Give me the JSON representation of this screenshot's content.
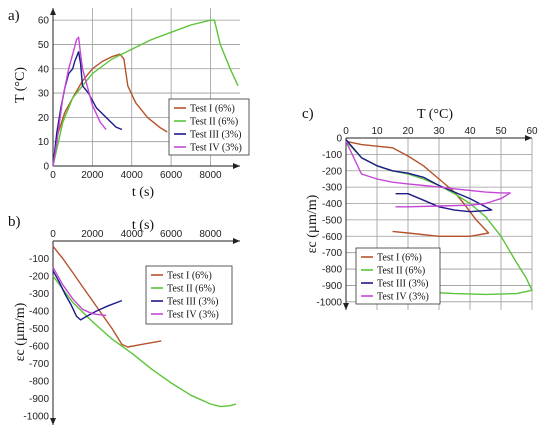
{
  "figure": {
    "panel_a_label": "a)",
    "panel_b_label": "b)",
    "panel_c_label": "c)"
  },
  "colors": {
    "Test I (6%)": "#b5532b",
    "Test II (6%)": "#5cc437",
    "Test III (3%)": "#1d1a8a",
    "Test IV (3%)": "#c547d6"
  },
  "chart_data": [
    {
      "id": "a",
      "type": "line",
      "xlabel": "t (s)",
      "ylabel": "T (°C)",
      "xlim": [
        0,
        9500
      ],
      "ylim": [
        0,
        65
      ],
      "xticks": [
        0,
        2000,
        4000,
        6000,
        8000
      ],
      "yticks": [
        0,
        10,
        20,
        30,
        40,
        50,
        60
      ],
      "grid": true,
      "legend": "center-right",
      "series": [
        {
          "name": "Test I (6%)",
          "points": [
            [
              0,
              0
            ],
            [
              200,
              12
            ],
            [
              600,
              22
            ],
            [
              1000,
              28
            ],
            [
              1500,
              35
            ],
            [
              2000,
              40
            ],
            [
              2500,
              43
            ],
            [
              3000,
              45
            ],
            [
              3400,
              46
            ],
            [
              3600,
              44
            ],
            [
              3800,
              33
            ],
            [
              4200,
              26
            ],
            [
              4800,
              20
            ],
            [
              5400,
              16
            ],
            [
              5800,
              14
            ]
          ]
        },
        {
          "name": "Test II (6%)",
          "points": [
            [
              0,
              0
            ],
            [
              500,
              18
            ],
            [
              1000,
              28
            ],
            [
              2000,
              38
            ],
            [
              3000,
              44
            ],
            [
              4000,
              48
            ],
            [
              5000,
              52
            ],
            [
              6000,
              55
            ],
            [
              7000,
              58
            ],
            [
              8000,
              60
            ],
            [
              8200,
              60
            ],
            [
              8500,
              50
            ],
            [
              9000,
              40
            ],
            [
              9400,
              33
            ]
          ]
        },
        {
          "name": "Test III (3%)",
          "points": [
            [
              0,
              0
            ],
            [
              200,
              14
            ],
            [
              400,
              24
            ],
            [
              600,
              32
            ],
            [
              800,
              38
            ],
            [
              1000,
              40
            ],
            [
              1100,
              43
            ],
            [
              1300,
              47
            ],
            [
              1400,
              42
            ],
            [
              1500,
              33
            ],
            [
              1800,
              30
            ],
            [
              2200,
              24
            ],
            [
              2700,
              20
            ],
            [
              3200,
              16
            ],
            [
              3500,
              15
            ]
          ]
        },
        {
          "name": "Test IV (3%)",
          "points": [
            [
              0,
              0
            ],
            [
              200,
              10
            ],
            [
              500,
              28
            ],
            [
              800,
              40
            ],
            [
              1000,
              46
            ],
            [
              1200,
              52
            ],
            [
              1300,
              53
            ],
            [
              1400,
              46
            ],
            [
              1500,
              40
            ],
            [
              1700,
              34
            ],
            [
              2000,
              25
            ],
            [
              2400,
              18
            ],
            [
              2700,
              15
            ]
          ]
        }
      ]
    },
    {
      "id": "b",
      "type": "line",
      "xlabel": "t (s)",
      "ylabel": "εc (µm/m)",
      "xlim": [
        0,
        9500
      ],
      "ylim": [
        -1050,
        0
      ],
      "xticks": [
        0,
        2000,
        4000,
        6000,
        8000
      ],
      "yticks": [
        -100,
        -200,
        -300,
        -400,
        -500,
        -600,
        -700,
        -800,
        -900,
        -1000
      ],
      "grid": false,
      "legend": "right",
      "series": [
        {
          "name": "Test I (6%)",
          "points": [
            [
              0,
              -30
            ],
            [
              500,
              -100
            ],
            [
              1000,
              -180
            ],
            [
              1500,
              -260
            ],
            [
              2000,
              -340
            ],
            [
              2500,
              -420
            ],
            [
              3000,
              -500
            ],
            [
              3500,
              -590
            ],
            [
              3800,
              -605
            ],
            [
              4500,
              -590
            ],
            [
              5500,
              -570
            ]
          ]
        },
        {
          "name": "Test II (6%)",
          "points": [
            [
              0,
              -200
            ],
            [
              1000,
              -350
            ],
            [
              2000,
              -460
            ],
            [
              3000,
              -560
            ],
            [
              4000,
              -640
            ],
            [
              5000,
              -730
            ],
            [
              6000,
              -810
            ],
            [
              7000,
              -880
            ],
            [
              8000,
              -930
            ],
            [
              8500,
              -945
            ],
            [
              9000,
              -940
            ],
            [
              9300,
              -930
            ]
          ]
        },
        {
          "name": "Test III (3%)",
          "points": [
            [
              0,
              -170
            ],
            [
              300,
              -230
            ],
            [
              600,
              -300
            ],
            [
              900,
              -360
            ],
            [
              1200,
              -430
            ],
            [
              1400,
              -450
            ],
            [
              1700,
              -430
            ],
            [
              2200,
              -400
            ],
            [
              2800,
              -370
            ],
            [
              3500,
              -340
            ]
          ]
        },
        {
          "name": "Test IV (3%)",
          "points": [
            [
              0,
              -150
            ],
            [
              500,
              -250
            ],
            [
              1000,
              -330
            ],
            [
              1500,
              -390
            ],
            [
              2000,
              -415
            ],
            [
              2300,
              -420
            ],
            [
              2700,
              -425
            ]
          ]
        }
      ]
    },
    {
      "id": "c",
      "type": "line",
      "xlabel": "T (°C)",
      "ylabel": "εc (µm/m)",
      "xlim": [
        0,
        60
      ],
      "ylim": [
        -1050,
        0
      ],
      "xticks": [
        0,
        10,
        20,
        30,
        40,
        50,
        60
      ],
      "yticks": [
        0,
        -100,
        -200,
        -300,
        -400,
        -500,
        -600,
        -700,
        -800,
        -900,
        -1000
      ],
      "grid": true,
      "legend": "bottom-left",
      "series": [
        {
          "name": "Test I (6%)",
          "points": [
            [
              0,
              -20
            ],
            [
              5,
              -40
            ],
            [
              10,
              -50
            ],
            [
              15,
              -60
            ],
            [
              20,
              -110
            ],
            [
              25,
              -170
            ],
            [
              30,
              -250
            ],
            [
              35,
              -330
            ],
            [
              38,
              -400
            ],
            [
              42,
              -500
            ],
            [
              46,
              -580
            ],
            [
              40,
              -600
            ],
            [
              30,
              -600
            ],
            [
              20,
              -580
            ],
            [
              15,
              -570
            ]
          ]
        },
        {
          "name": "Test II (6%)",
          "points": [
            [
              0,
              -20
            ],
            [
              5,
              -120
            ],
            [
              10,
              -170
            ],
            [
              15,
              -200
            ],
            [
              20,
              -220
            ],
            [
              25,
              -250
            ],
            [
              30,
              -290
            ],
            [
              35,
              -340
            ],
            [
              40,
              -400
            ],
            [
              45,
              -480
            ],
            [
              50,
              -600
            ],
            [
              55,
              -760
            ],
            [
              58,
              -850
            ],
            [
              60,
              -930
            ],
            [
              55,
              -950
            ],
            [
              45,
              -955
            ],
            [
              35,
              -950
            ],
            [
              25,
              -940
            ]
          ]
        },
        {
          "name": "Test III (3%)",
          "points": [
            [
              0,
              -10
            ],
            [
              5,
              -120
            ],
            [
              10,
              -170
            ],
            [
              15,
              -200
            ],
            [
              20,
              -215
            ],
            [
              25,
              -240
            ],
            [
              30,
              -290
            ],
            [
              35,
              -330
            ],
            [
              40,
              -370
            ],
            [
              45,
              -420
            ],
            [
              47,
              -440
            ],
            [
              40,
              -450
            ],
            [
              35,
              -440
            ],
            [
              30,
              -420
            ],
            [
              25,
              -380
            ],
            [
              20,
              -340
            ],
            [
              16,
              -340
            ]
          ]
        },
        {
          "name": "Test IV (3%)",
          "points": [
            [
              0,
              -20
            ],
            [
              5,
              -220
            ],
            [
              10,
              -250
            ],
            [
              15,
              -270
            ],
            [
              20,
              -280
            ],
            [
              25,
              -290
            ],
            [
              30,
              -300
            ],
            [
              35,
              -310
            ],
            [
              40,
              -320
            ],
            [
              45,
              -330
            ],
            [
              50,
              -335
            ],
            [
              53,
              -335
            ],
            [
              50,
              -370
            ],
            [
              45,
              -400
            ],
            [
              40,
              -410
            ],
            [
              30,
              -415
            ],
            [
              20,
              -420
            ],
            [
              16,
              -420
            ]
          ]
        }
      ]
    }
  ]
}
